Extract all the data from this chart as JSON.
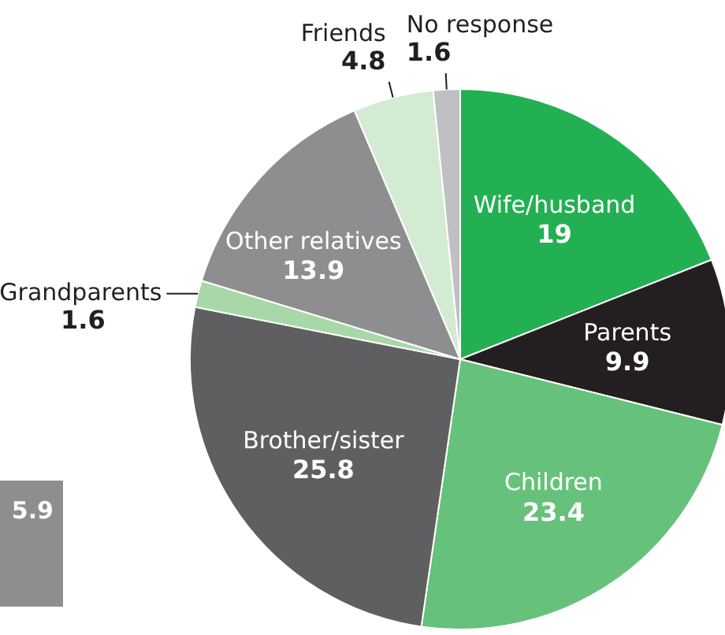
{
  "chart_data": {
    "type": "pie",
    "categories": [
      "Wife/husband",
      "Parents",
      "Children",
      "Brother/sister",
      "Grandparents",
      "Other relatives",
      "Friends",
      "No response"
    ],
    "values": [
      19,
      9.9,
      23.4,
      25.8,
      1.6,
      13.9,
      4.8,
      1.6
    ],
    "colors": [
      "#22b052",
      "#231f20",
      "#66c17a",
      "#5f5f61",
      "#a8d8a8",
      "#8e8e90",
      "#d3ebd3",
      "#bfc0c2"
    ],
    "data_labels": true,
    "legend": false,
    "annotations": [
      "5.9"
    ]
  }
}
